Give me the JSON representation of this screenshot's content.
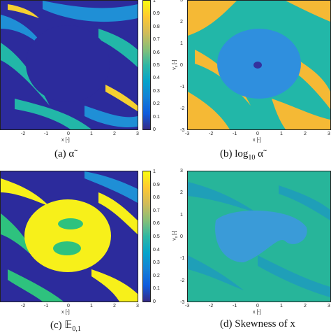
{
  "chart_data": [
    {
      "type": "heatmap",
      "caption": "(a) α̃",
      "xlabel": "x [-]",
      "ylabel": "",
      "xticks": [
        "-2",
        "-1",
        "0",
        "1",
        "2",
        "3"
      ],
      "yticks": [],
      "colorbar_ticks": [
        "0",
        "0.1",
        "0.2",
        "0.3",
        "0.4",
        "0.5",
        "0.6",
        "0.7",
        "0.8",
        "0.9",
        "1"
      ],
      "colormap": "parula",
      "background": "#2c2b9c",
      "accent_colors": [
        "#1f8fd6",
        "#22b7a8",
        "#f5d030"
      ]
    },
    {
      "type": "heatmap",
      "caption": "(b) log10 α̃",
      "xlabel": "x [-]",
      "ylabel": "v_x [-]",
      "xticks": [
        "-3",
        "-2",
        "-1",
        "0",
        "1",
        "2",
        "3"
      ],
      "yticks": [
        "3",
        "2",
        "1",
        "0",
        "-1",
        "-2",
        "-3"
      ],
      "colorbar_ticks": [],
      "colormap": "parula",
      "background": "#22b7a8",
      "accent_colors": [
        "#f5b935",
        "#2f8fde",
        "#34319e"
      ]
    },
    {
      "type": "heatmap",
      "caption": "(c) E0,1",
      "xlabel": "x [-]",
      "ylabel": "",
      "xticks": [
        "-2",
        "-1",
        "0",
        "1",
        "2",
        "3"
      ],
      "yticks": [],
      "colorbar_ticks": [
        "0",
        "0.1",
        "0.2",
        "0.3",
        "0.4",
        "0.5",
        "0.6",
        "0.7",
        "0.8",
        "0.9",
        "1"
      ],
      "colormap": "parula",
      "background": "#2c2b9c",
      "accent_colors": [
        "#f7f01a",
        "#2ec27e",
        "#1f8fd6"
      ]
    },
    {
      "type": "heatmap",
      "caption": "(d) Skewness of x",
      "xlabel": "x [-]",
      "ylabel": "v_x [-]",
      "xticks": [
        "-3",
        "-2",
        "-1",
        "0",
        "1",
        "2",
        "3"
      ],
      "yticks": [
        "3",
        "2",
        "1",
        "0",
        "-1",
        "-2",
        "-3"
      ],
      "colorbar_ticks": [],
      "colormap": "parula",
      "background": "#27b59a",
      "accent_colors": [
        "#3a9bd8",
        "#1f9fb8"
      ]
    }
  ],
  "captions": {
    "a_prefix": "(a)",
    "a_symbol": "α̃",
    "b_prefix": "(b)",
    "b_log": "log",
    "b_sub": "10",
    "b_symbol": "α̃",
    "c_prefix": "(c)",
    "c_symbol": "𝔼",
    "c_sub": "0,1",
    "d_text": "(d) Skewness of x"
  },
  "labels": {
    "xlabel": "x [-]",
    "ylabel": "v"
  }
}
